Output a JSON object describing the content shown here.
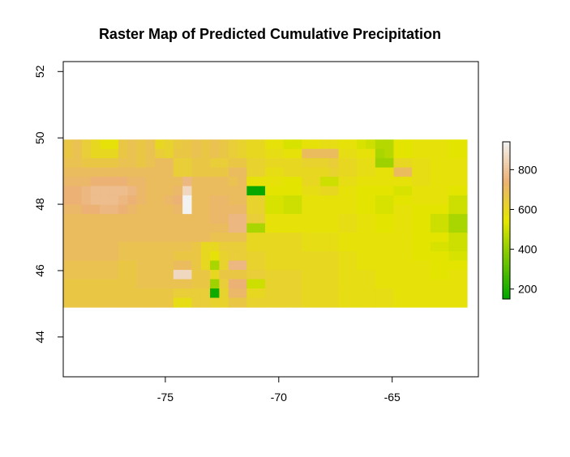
{
  "chart_data": {
    "type": "heatmap",
    "title": "Raster Map of Predicted Cumulative Precipitation",
    "xlabel": "",
    "ylabel": "",
    "xlim": [
      -79.5,
      -61.2
    ],
    "ylim": [
      42.8,
      52.3
    ],
    "x_ticks": [
      -75,
      -70,
      -65
    ],
    "x_tick_labels": [
      "-75",
      "-70",
      "-65"
    ],
    "y_ticks": [
      44,
      46,
      48,
      50
    ],
    "y_tick_labels": [
      "44",
      "46",
      "48",
      "50"
    ],
    "extent": {
      "xmin": -79.5,
      "xmax": -61.7,
      "ymin": 44.9,
      "ymax": 49.95
    },
    "grid": false,
    "legend": {
      "placement": "right",
      "ticks": [
        200,
        400,
        600,
        800
      ],
      "tick_labels": [
        "200",
        "400",
        "600",
        "800"
      ],
      "range": [
        150,
        940
      ],
      "colormap": "terrain",
      "colors": [
        "#00a600",
        "#e6e600",
        "#ecb176",
        "#f2f2f2"
      ]
    },
    "rows": [
      [
        660,
        680,
        640,
        600,
        560,
        560,
        660,
        680,
        660,
        680,
        600,
        620,
        650,
        660,
        680,
        660,
        680,
        660,
        640,
        620,
        600,
        600,
        560,
        560,
        520,
        520,
        560,
        560,
        580,
        580,
        560,
        560,
        520,
        500,
        460,
        460,
        540,
        540,
        560,
        560,
        560,
        560,
        540,
        540
      ],
      [
        660,
        680,
        640,
        600,
        600,
        600,
        660,
        680,
        660,
        680,
        640,
        620,
        660,
        660,
        680,
        660,
        680,
        660,
        640,
        620,
        600,
        600,
        580,
        580,
        560,
        560,
        700,
        700,
        700,
        700,
        580,
        580,
        560,
        560,
        440,
        460,
        540,
        540,
        560,
        560,
        560,
        560,
        540,
        540
      ],
      [
        680,
        680,
        660,
        660,
        660,
        660,
        680,
        680,
        660,
        680,
        700,
        700,
        640,
        640,
        660,
        660,
        640,
        640,
        660,
        660,
        620,
        620,
        600,
        600,
        600,
        600,
        620,
        620,
        620,
        640,
        600,
        600,
        580,
        580,
        420,
        420,
        600,
        600,
        580,
        580,
        560,
        560,
        560,
        560
      ],
      [
        700,
        700,
        700,
        700,
        700,
        700,
        700,
        700,
        700,
        700,
        700,
        700,
        640,
        640,
        660,
        660,
        660,
        660,
        700,
        700,
        620,
        620,
        580,
        580,
        600,
        600,
        600,
        600,
        600,
        620,
        600,
        600,
        580,
        580,
        560,
        560,
        700,
        700,
        580,
        580,
        560,
        560,
        560,
        560
      ],
      [
        720,
        720,
        720,
        740,
        740,
        740,
        740,
        720,
        720,
        700,
        700,
        700,
        700,
        760,
        700,
        700,
        700,
        700,
        680,
        700,
        560,
        560,
        560,
        560,
        540,
        540,
        600,
        600,
        500,
        500,
        580,
        580,
        560,
        560,
        560,
        560,
        560,
        560,
        580,
        580,
        560,
        560,
        560,
        560
      ],
      [
        740,
        740,
        760,
        780,
        780,
        780,
        780,
        760,
        720,
        700,
        700,
        700,
        720,
        860,
        700,
        700,
        700,
        700,
        700,
        700,
        160,
        160,
        540,
        540,
        540,
        540,
        580,
        580,
        600,
        600,
        560,
        560,
        540,
        540,
        540,
        540,
        520,
        520,
        560,
        560,
        560,
        560,
        540,
        540
      ],
      [
        740,
        740,
        760,
        780,
        780,
        780,
        760,
        740,
        720,
        700,
        700,
        720,
        740,
        940,
        700,
        700,
        720,
        720,
        700,
        700,
        620,
        620,
        520,
        520,
        500,
        500,
        560,
        560,
        560,
        560,
        560,
        560,
        540,
        540,
        520,
        520,
        540,
        540,
        560,
        560,
        560,
        560,
        500,
        500
      ],
      [
        720,
        720,
        740,
        740,
        760,
        760,
        740,
        720,
        700,
        700,
        700,
        700,
        720,
        940,
        700,
        700,
        720,
        720,
        720,
        720,
        620,
        620,
        520,
        520,
        500,
        500,
        560,
        560,
        560,
        560,
        560,
        560,
        540,
        540,
        520,
        520,
        560,
        560,
        540,
        540,
        540,
        540,
        500,
        500
      ],
      [
        700,
        700,
        700,
        700,
        700,
        700,
        700,
        700,
        700,
        700,
        700,
        700,
        700,
        700,
        700,
        700,
        720,
        720,
        760,
        760,
        640,
        640,
        560,
        560,
        560,
        560,
        560,
        560,
        560,
        560,
        580,
        580,
        560,
        560,
        540,
        540,
        560,
        560,
        540,
        540,
        500,
        500,
        440,
        440
      ],
      [
        700,
        700,
        700,
        700,
        700,
        700,
        700,
        700,
        700,
        700,
        700,
        700,
        700,
        700,
        700,
        700,
        700,
        700,
        760,
        760,
        440,
        440,
        560,
        560,
        560,
        560,
        560,
        560,
        560,
        560,
        580,
        580,
        560,
        560,
        540,
        540,
        560,
        560,
        540,
        540,
        500,
        500,
        440,
        440
      ],
      [
        700,
        700,
        700,
        700,
        700,
        700,
        700,
        700,
        700,
        700,
        700,
        700,
        700,
        700,
        700,
        700,
        680,
        680,
        680,
        680,
        600,
        600,
        600,
        600,
        600,
        600,
        580,
        580,
        580,
        580,
        560,
        560,
        560,
        560,
        560,
        560,
        560,
        560,
        540,
        540,
        540,
        540,
        500,
        500
      ],
      [
        700,
        700,
        700,
        700,
        700,
        700,
        680,
        680,
        680,
        680,
        680,
        680,
        680,
        680,
        660,
        600,
        600,
        640,
        640,
        640,
        600,
        600,
        600,
        600,
        600,
        600,
        580,
        580,
        580,
        580,
        560,
        560,
        560,
        560,
        560,
        560,
        560,
        560,
        540,
        540,
        520,
        520,
        500,
        500
      ],
      [
        700,
        700,
        700,
        700,
        700,
        700,
        680,
        680,
        680,
        680,
        680,
        680,
        660,
        660,
        660,
        600,
        560,
        620,
        640,
        640,
        620,
        620,
        600,
        600,
        600,
        600,
        600,
        600,
        600,
        600,
        580,
        580,
        560,
        560,
        560,
        560,
        560,
        560,
        540,
        540,
        540,
        540,
        520,
        520
      ],
      [
        680,
        680,
        680,
        680,
        680,
        680,
        660,
        660,
        680,
        680,
        680,
        680,
        700,
        700,
        660,
        600,
        440,
        620,
        760,
        760,
        620,
        620,
        600,
        600,
        600,
        600,
        600,
        600,
        600,
        600,
        580,
        580,
        560,
        560,
        560,
        560,
        560,
        560,
        560,
        560,
        540,
        540,
        540,
        540
      ],
      [
        680,
        680,
        680,
        680,
        680,
        680,
        660,
        660,
        680,
        680,
        680,
        680,
        860,
        860,
        660,
        660,
        600,
        660,
        660,
        660,
        640,
        640,
        620,
        620,
        620,
        620,
        600,
        600,
        600,
        600,
        580,
        580,
        580,
        580,
        560,
        560,
        560,
        560,
        560,
        560,
        540,
        540,
        560,
        560
      ],
      [
        660,
        660,
        660,
        660,
        660,
        660,
        660,
        660,
        680,
        680,
        680,
        680,
        680,
        680,
        660,
        660,
        420,
        640,
        740,
        740,
        500,
        500,
        620,
        620,
        620,
        620,
        600,
        600,
        600,
        600,
        580,
        580,
        580,
        580,
        560,
        560,
        560,
        560,
        560,
        560,
        560,
        560,
        560,
        560
      ],
      [
        660,
        660,
        660,
        660,
        660,
        660,
        660,
        660,
        660,
        660,
        660,
        660,
        640,
        640,
        640,
        640,
        180,
        620,
        720,
        720,
        600,
        600,
        620,
        620,
        620,
        620,
        600,
        600,
        600,
        600,
        580,
        580,
        580,
        580,
        580,
        580,
        560,
        560,
        560,
        560,
        560,
        560,
        560,
        560
      ],
      [
        660,
        660,
        660,
        660,
        660,
        660,
        660,
        660,
        660,
        660,
        660,
        660,
        580,
        580,
        640,
        640,
        620,
        620,
        660,
        660,
        620,
        620,
        620,
        620,
        620,
        620,
        600,
        600,
        600,
        600,
        580,
        580,
        580,
        580,
        580,
        580,
        560,
        560,
        560,
        560,
        560,
        560,
        560,
        560
      ]
    ]
  }
}
